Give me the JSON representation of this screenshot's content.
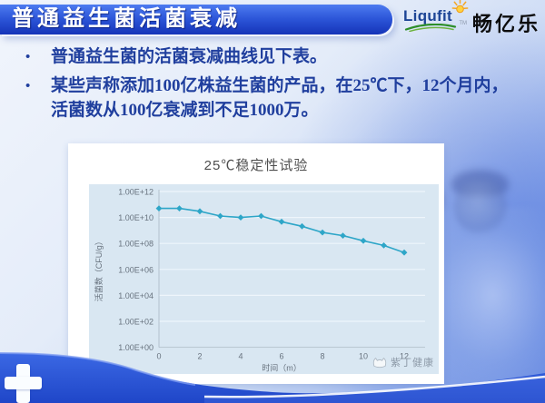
{
  "slide": {
    "title": "普通益生菌活菌衰减",
    "bullets": [
      "普通益生菌的活菌衰减曲线见下表。",
      "某些声称添加100亿株益生菌的产品，在25℃下，12个月内，活菌数从100亿衰减到不足1000万。"
    ],
    "bullet_marker": "•"
  },
  "logo": {
    "brand": "Liqufit",
    "trademark": "TM",
    "brand_cn": "畅亿乐"
  },
  "chart_data": {
    "type": "line",
    "title": "25℃稳定性试验",
    "xlabel": "时间（m）",
    "ylabel": "活菌数（CFU/g）",
    "x": [
      0,
      1,
      2,
      3,
      4,
      5,
      6,
      7,
      8,
      9,
      10,
      11,
      12
    ],
    "values": [
      50000000000.0,
      50000000000.0,
      30000000000.0,
      13000000000.0,
      10000000000.0,
      13000000000.0,
      4700000000.0,
      2100000000.0,
      700000000.0,
      400000000.0,
      160000000.0,
      70000000.0,
      20000000.0
    ],
    "x_ticks": [
      0,
      2,
      4,
      6,
      8,
      10,
      12
    ],
    "x_tick_labels": [
      "0",
      "2",
      "4",
      "6",
      "8",
      "10",
      "12"
    ],
    "y_tick_exponents": [
      12,
      10,
      8,
      6,
      4,
      2,
      0
    ],
    "y_tick_labels": [
      "1.00E+12",
      "1.00E+10",
      "1.00E+08",
      "1.00E+06",
      "1.00E+04",
      "1.00E+02",
      "1.00E+00"
    ],
    "ylog_range": [
      0,
      12
    ],
    "grid": true,
    "legend_position": "none",
    "line_color": "#2ea6c8",
    "plot_bg": "#d9e7f2"
  },
  "watermark": {
    "text": "紫丁健康"
  },
  "colors": {
    "title_bar_top": "#4d7bf0",
    "title_bar_bottom": "#1534b8",
    "wave_blue": "#2a59dc",
    "bullet_text": "#203f9e",
    "brand_blue": "#1d4596",
    "swoosh_green": "#2e8f2b",
    "sun_orange": "#f5a623"
  }
}
